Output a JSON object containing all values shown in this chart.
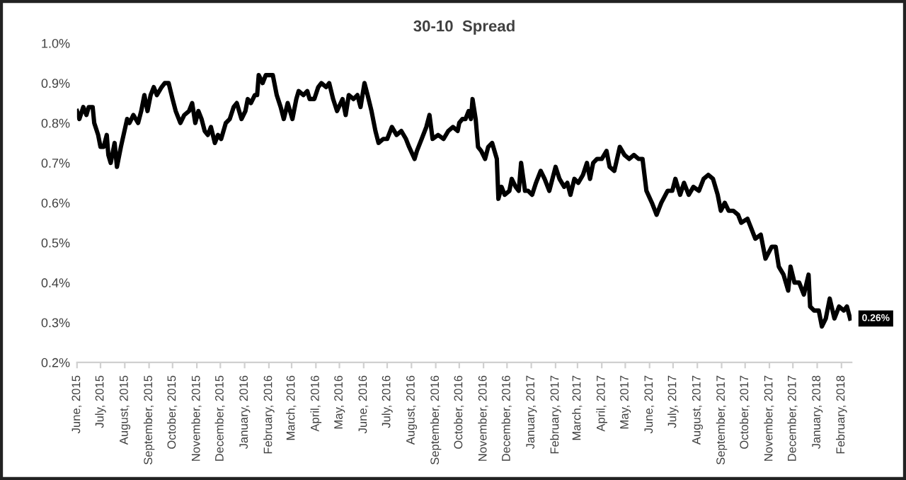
{
  "chart_data": {
    "type": "line",
    "title": "30-10  Spread",
    "x": [
      "2015-06-01",
      "2015-06-04",
      "2015-06-09",
      "2015-06-13",
      "2015-06-16",
      "2015-06-21",
      "2015-06-23",
      "2015-06-28",
      "2015-07-01",
      "2015-07-05",
      "2015-07-09",
      "2015-07-11",
      "2015-07-14",
      "2015-07-19",
      "2015-07-22",
      "2015-07-27",
      "2015-08-04",
      "2015-08-07",
      "2015-08-12",
      "2015-08-18",
      "2015-08-22",
      "2015-08-26",
      "2015-08-30",
      "2015-09-03",
      "2015-09-07",
      "2015-09-11",
      "2015-09-17",
      "2015-09-21",
      "2015-09-26",
      "2015-10-01",
      "2015-10-05",
      "2015-10-11",
      "2015-10-16",
      "2015-10-22",
      "2015-10-26",
      "2015-10-30",
      "2015-11-03",
      "2015-11-07",
      "2015-11-11",
      "2015-11-15",
      "2015-11-19",
      "2015-11-24",
      "2015-11-28",
      "2015-12-02",
      "2015-12-08",
      "2015-12-13",
      "2015-12-18",
      "2015-12-22",
      "2015-12-28",
      "2016-01-02",
      "2016-01-05",
      "2016-01-09",
      "2016-01-14",
      "2016-01-17",
      "2016-01-19",
      "2016-01-24",
      "2016-01-28",
      "2016-02-02",
      "2016-02-06",
      "2016-02-11",
      "2016-02-16",
      "2016-02-20",
      "2016-02-25",
      "2016-03-02",
      "2016-03-07",
      "2016-03-10",
      "2016-03-16",
      "2016-03-21",
      "2016-03-24",
      "2016-03-30",
      "2016-04-04",
      "2016-04-08",
      "2016-04-14",
      "2016-04-18",
      "2016-04-23",
      "2016-04-28",
      "2016-05-05",
      "2016-05-09",
      "2016-05-13",
      "2016-05-19",
      "2016-05-24",
      "2016-05-28",
      "2016-06-02",
      "2016-06-06",
      "2016-06-11",
      "2016-06-16",
      "2016-06-20",
      "2016-06-26",
      "2016-07-01",
      "2016-07-07",
      "2016-07-13",
      "2016-07-19",
      "2016-07-25",
      "2016-07-29",
      "2016-08-05",
      "2016-08-08",
      "2016-08-14",
      "2016-08-20",
      "2016-08-24",
      "2016-08-28",
      "2016-09-04",
      "2016-09-11",
      "2016-09-17",
      "2016-09-23",
      "2016-09-29",
      "2016-10-01",
      "2016-10-05",
      "2016-10-09",
      "2016-10-13",
      "2016-10-16",
      "2016-10-18",
      "2016-10-22",
      "2016-10-25",
      "2016-10-29",
      "2016-11-03",
      "2016-11-07",
      "2016-11-12",
      "2016-11-18",
      "2016-11-20",
      "2016-11-24",
      "2016-11-28",
      "2016-12-04",
      "2016-12-07",
      "2016-12-12",
      "2016-12-16",
      "2016-12-19",
      "2016-12-24",
      "2016-12-28",
      "2017-01-02",
      "2017-01-07",
      "2017-01-13",
      "2017-01-18",
      "2017-01-24",
      "2017-02-01",
      "2017-02-06",
      "2017-02-12",
      "2017-02-16",
      "2017-02-20",
      "2017-02-25",
      "2017-03-02",
      "2017-03-08",
      "2017-03-13",
      "2017-03-17",
      "2017-03-21",
      "2017-03-26",
      "2017-04-01",
      "2017-04-07",
      "2017-04-11",
      "2017-04-17",
      "2017-04-24",
      "2017-04-30",
      "2017-05-06",
      "2017-05-12",
      "2017-05-18",
      "2017-05-23",
      "2017-05-28",
      "2017-06-04",
      "2017-06-10",
      "2017-06-16",
      "2017-06-24",
      "2017-06-30",
      "2017-07-04",
      "2017-07-10",
      "2017-07-15",
      "2017-07-21",
      "2017-07-27",
      "2017-08-03",
      "2017-08-09",
      "2017-08-15",
      "2017-08-21",
      "2017-08-27",
      "2017-08-31",
      "2017-09-05",
      "2017-09-10",
      "2017-09-16",
      "2017-09-22",
      "2017-09-26",
      "2017-10-04",
      "2017-10-10",
      "2017-10-14",
      "2017-10-21",
      "2017-10-27",
      "2017-11-04",
      "2017-11-09",
      "2017-11-13",
      "2017-11-19",
      "2017-11-25",
      "2017-11-28",
      "2017-12-03",
      "2017-12-09",
      "2017-12-15",
      "2017-12-21",
      "2017-12-23",
      "2017-12-28",
      "2018-01-03",
      "2018-01-07",
      "2018-01-12",
      "2018-01-17",
      "2018-01-23",
      "2018-01-29",
      "2018-02-04",
      "2018-02-08",
      "2018-02-12"
    ],
    "series": [
      {
        "color": "#000000",
        "values": [
          0.83,
          0.81,
          0.84,
          0.82,
          0.84,
          0.84,
          0.8,
          0.77,
          0.74,
          0.74,
          0.77,
          0.72,
          0.7,
          0.75,
          0.69,
          0.74,
          0.81,
          0.8,
          0.82,
          0.8,
          0.83,
          0.87,
          0.83,
          0.87,
          0.89,
          0.87,
          0.89,
          0.9,
          0.9,
          0.86,
          0.83,
          0.8,
          0.82,
          0.83,
          0.85,
          0.8,
          0.83,
          0.81,
          0.78,
          0.77,
          0.79,
          0.75,
          0.77,
          0.76,
          0.8,
          0.81,
          0.84,
          0.85,
          0.81,
          0.83,
          0.86,
          0.85,
          0.87,
          0.87,
          0.92,
          0.9,
          0.92,
          0.92,
          0.92,
          0.87,
          0.84,
          0.81,
          0.85,
          0.81,
          0.86,
          0.88,
          0.87,
          0.88,
          0.86,
          0.86,
          0.89,
          0.9,
          0.89,
          0.9,
          0.86,
          0.83,
          0.86,
          0.82,
          0.87,
          0.86,
          0.87,
          0.84,
          0.9,
          0.87,
          0.83,
          0.78,
          0.75,
          0.76,
          0.76,
          0.79,
          0.77,
          0.78,
          0.76,
          0.74,
          0.71,
          0.73,
          0.76,
          0.79,
          0.82,
          0.76,
          0.77,
          0.76,
          0.78,
          0.79,
          0.78,
          0.8,
          0.81,
          0.81,
          0.83,
          0.81,
          0.86,
          0.81,
          0.74,
          0.73,
          0.71,
          0.74,
          0.75,
          0.71,
          0.61,
          0.64,
          0.62,
          0.63,
          0.66,
          0.64,
          0.63,
          0.7,
          0.63,
          0.63,
          0.62,
          0.65,
          0.68,
          0.66,
          0.63,
          0.69,
          0.66,
          0.64,
          0.65,
          0.62,
          0.66,
          0.65,
          0.67,
          0.7,
          0.66,
          0.7,
          0.71,
          0.71,
          0.73,
          0.69,
          0.68,
          0.74,
          0.72,
          0.71,
          0.72,
          0.71,
          0.71,
          0.63,
          0.6,
          0.57,
          0.6,
          0.63,
          0.63,
          0.66,
          0.62,
          0.65,
          0.62,
          0.64,
          0.63,
          0.66,
          0.67,
          0.66,
          0.62,
          0.58,
          0.6,
          0.58,
          0.58,
          0.57,
          0.55,
          0.56,
          0.53,
          0.51,
          0.52,
          0.46,
          0.49,
          0.49,
          0.44,
          0.42,
          0.38,
          0.44,
          0.4,
          0.4,
          0.37,
          0.42,
          0.34,
          0.33,
          0.33,
          0.29,
          0.31,
          0.36,
          0.31,
          0.34,
          0.33,
          0.34,
          0.31
        ]
      }
    ],
    "xlim": [
      "2015-06-01",
      "2018-02-14"
    ],
    "xticks": [
      {
        "value": "2015-06-01",
        "label": "June, 2015"
      },
      {
        "value": "2015-07-01",
        "label": "July, 2015"
      },
      {
        "value": "2015-08-01",
        "label": "August, 2015"
      },
      {
        "value": "2015-09-01",
        "label": "September, 2015"
      },
      {
        "value": "2015-10-01",
        "label": "October, 2015"
      },
      {
        "value": "2015-11-01",
        "label": "November, 2015"
      },
      {
        "value": "2015-12-01",
        "label": "December, 2015"
      },
      {
        "value": "2016-01-01",
        "label": "January, 2016"
      },
      {
        "value": "2016-02-01",
        "label": "February, 2016"
      },
      {
        "value": "2016-03-01",
        "label": "March, 2016"
      },
      {
        "value": "2016-04-01",
        "label": "April, 2016"
      },
      {
        "value": "2016-05-01",
        "label": "May, 2016"
      },
      {
        "value": "2016-06-01",
        "label": "June, 2016"
      },
      {
        "value": "2016-07-01",
        "label": "July, 2016"
      },
      {
        "value": "2016-08-01",
        "label": "August, 2016"
      },
      {
        "value": "2016-09-01",
        "label": "September, 2016"
      },
      {
        "value": "2016-10-01",
        "label": "October, 2016"
      },
      {
        "value": "2016-11-01",
        "label": "November, 2016"
      },
      {
        "value": "2016-12-01",
        "label": "December, 2016"
      },
      {
        "value": "2017-01-01",
        "label": "January, 2017"
      },
      {
        "value": "2017-02-01",
        "label": "February, 2017"
      },
      {
        "value": "2017-03-01",
        "label": "March, 2017"
      },
      {
        "value": "2017-04-01",
        "label": "April, 2017"
      },
      {
        "value": "2017-05-01",
        "label": "May, 2017"
      },
      {
        "value": "2017-06-01",
        "label": "June, 2017"
      },
      {
        "value": "2017-07-01",
        "label": "July, 2017"
      },
      {
        "value": "2017-08-01",
        "label": "August, 2017"
      },
      {
        "value": "2017-09-01",
        "label": "September, 2017"
      },
      {
        "value": "2017-10-01",
        "label": "October, 2017"
      },
      {
        "value": "2017-11-01",
        "label": "November, 2017"
      },
      {
        "value": "2017-12-01",
        "label": "December, 2017"
      },
      {
        "value": "2018-01-01",
        "label": "January, 2018"
      },
      {
        "value": "2018-02-01",
        "label": "February, 2018"
      }
    ],
    "ylim": [
      0.2,
      1.0
    ],
    "yticks": [
      {
        "value": 0.2,
        "label": "0.2%"
      },
      {
        "value": 0.3,
        "label": "0.3%"
      },
      {
        "value": 0.4,
        "label": "0.4%"
      },
      {
        "value": 0.5,
        "label": "0.5%"
      },
      {
        "value": 0.6,
        "label": "0.6%"
      },
      {
        "value": 0.7,
        "label": "0.7%"
      },
      {
        "value": 0.8,
        "label": "0.8%"
      },
      {
        "value": 0.9,
        "label": "0.9%"
      },
      {
        "value": 1.0,
        "label": "1.0%"
      }
    ],
    "grid": false,
    "legend": false,
    "marker": "none",
    "line_style": "solid",
    "annotations": [
      {
        "text": "0.26%",
        "x": "2018-02-12",
        "y": 0.31
      }
    ]
  }
}
